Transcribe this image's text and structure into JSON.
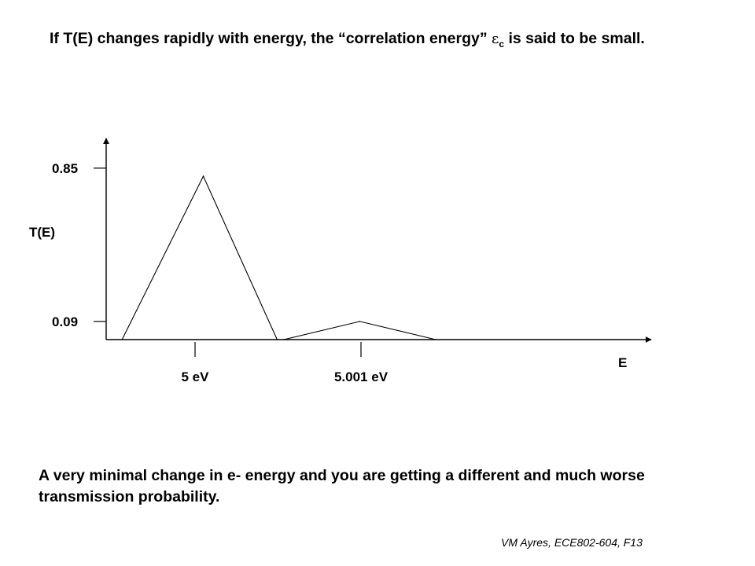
{
  "heading": {
    "before": "If T(E) changes rapidly with energy, the “correlation energy” ",
    "symbol": "ε",
    "subscript": "c",
    "after": " is said to be small."
  },
  "chart_data": {
    "type": "line",
    "title": "",
    "xlabel": "E",
    "ylabel": "T(E)",
    "x_ticks": [
      {
        "label": "5 eV",
        "value": 5.0
      },
      {
        "label": "5.001 eV",
        "value": 5.001
      }
    ],
    "y_ticks": [
      {
        "label": "0.85",
        "value": 0.85
      },
      {
        "label": "0.09",
        "value": 0.09
      }
    ],
    "series": [
      {
        "values": [
          {
            "x": 4.99956,
            "y": 0.0
          },
          {
            "x": 5.00005,
            "y": 0.81
          },
          {
            "x": 5.000495,
            "y": 0.0
          }
        ]
      },
      {
        "values": [
          {
            "x": 5.000535,
            "y": 0.0
          },
          {
            "x": 5.000993,
            "y": 0.09
          },
          {
            "x": 5.00145,
            "y": 0.0
          }
        ]
      }
    ],
    "grid": false
  },
  "bottom_text": "A very minimal change in e- energy and you are getting a different and much worse transmission probability.",
  "credit": "VM Ayres, ECE802-604, F13"
}
